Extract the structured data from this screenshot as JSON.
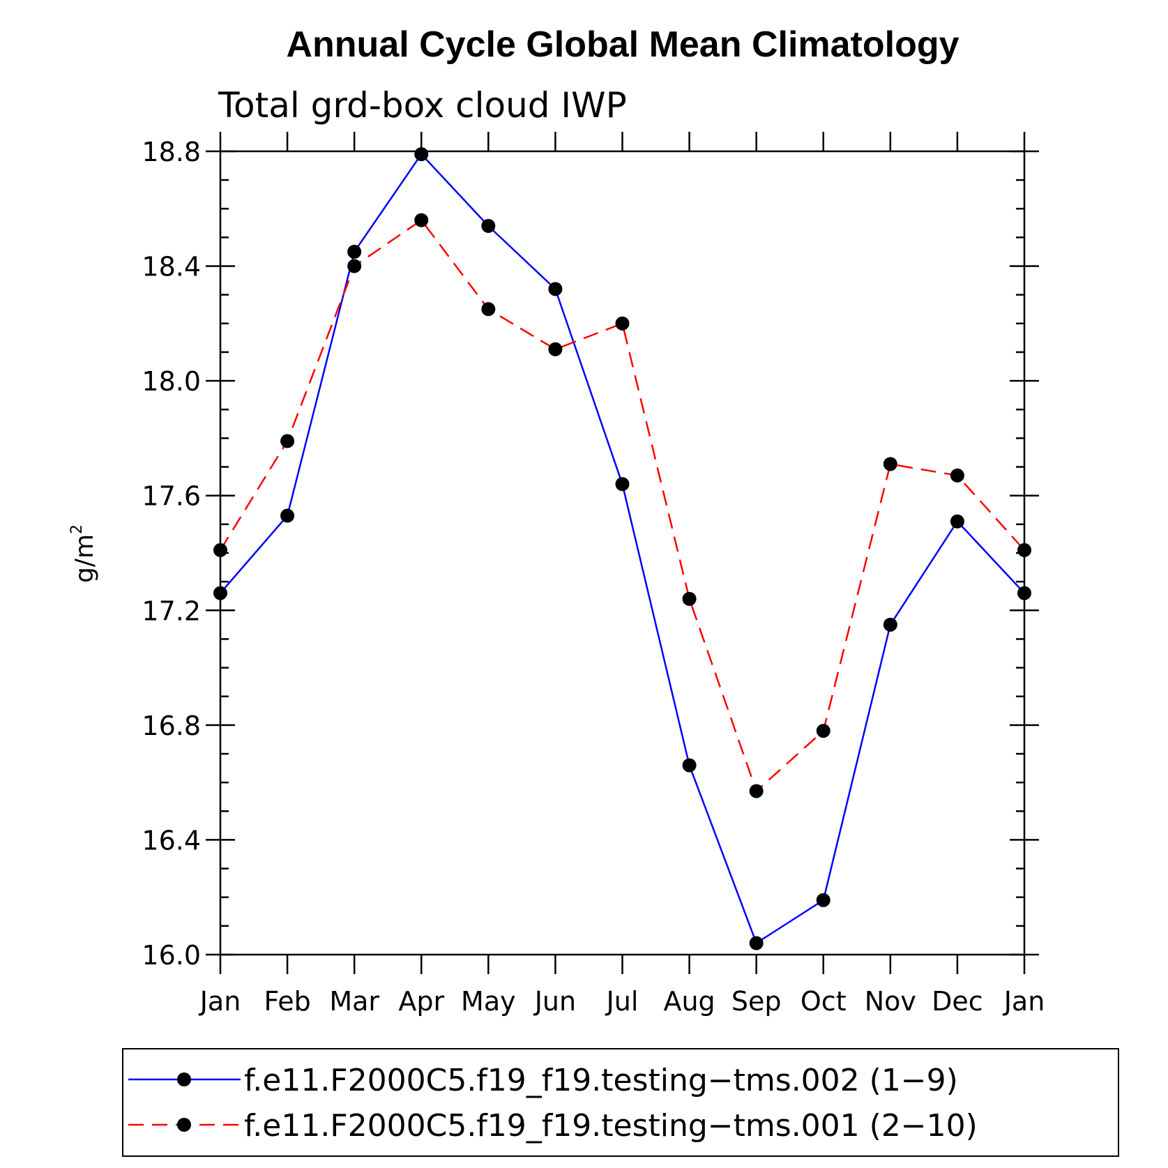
{
  "chart_data": {
    "type": "line",
    "title": "Annual Cycle Global Mean Climatology",
    "subtitle": "Total grd-box cloud IWP",
    "xlabel": "",
    "ylabel": "g/m",
    "ylabel_superscript": "2",
    "categories": [
      "Jan",
      "Feb",
      "Mar",
      "Apr",
      "May",
      "Jun",
      "Jul",
      "Aug",
      "Sep",
      "Oct",
      "Nov",
      "Dec",
      "Jan"
    ],
    "ylim": [
      16.0,
      18.8
    ],
    "yticks": [
      "16.0",
      "16.4",
      "16.8",
      "17.2",
      "17.6",
      "18.0",
      "18.4",
      "18.8"
    ],
    "grid": false,
    "legend_position": "bottom",
    "series": [
      {
        "name": "f.e11.F2000C5.f19_f19.testing−tms.002 (1−9)",
        "color": "#0000ff",
        "line_style": "solid",
        "marker": "filled-circle",
        "values": [
          17.26,
          17.53,
          18.45,
          18.79,
          18.54,
          18.32,
          17.64,
          16.66,
          16.04,
          16.19,
          17.15,
          17.51,
          17.26
        ]
      },
      {
        "name": "f.e11.F2000C5.f19_f19.testing−tms.001 (2−10)",
        "color": "#ff0000",
        "line_style": "dashed",
        "marker": "filled-circle",
        "values": [
          17.41,
          17.79,
          18.4,
          18.56,
          18.25,
          18.11,
          18.2,
          17.24,
          16.57,
          16.78,
          17.71,
          17.67,
          17.41
        ]
      }
    ]
  }
}
